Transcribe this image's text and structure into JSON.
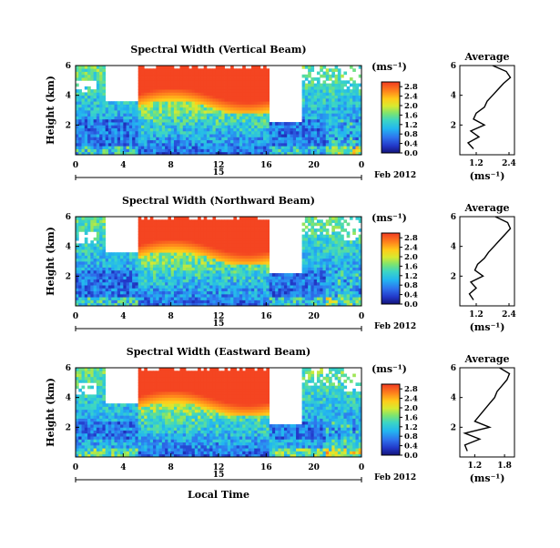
{
  "figure": {
    "xlabel": "Local Time",
    "date_label": "Feb 2012",
    "day_marker": "15",
    "units": "(ms⁻¹)",
    "avg_title": "Average"
  },
  "chart_data": [
    {
      "type": "heatmap",
      "title": "Spectral Width (Vertical Beam)",
      "xlabel": "Local Time",
      "ylabel": "Height (km)",
      "x_ticks": [
        "0",
        "4",
        "8",
        "12",
        "16",
        "20",
        "0"
      ],
      "y_ticks": [
        "2",
        "4",
        "6"
      ],
      "xlim": [
        0,
        24
      ],
      "ylim": [
        0,
        6
      ],
      "colorbar": {
        "label": "(ms⁻¹)",
        "ticks": [
          "0.0",
          "0.4",
          "0.8",
          "1.2",
          "1.6",
          "2.0",
          "2.4",
          "2.8"
        ],
        "range": [
          0,
          3.0
        ]
      },
      "data_gap_hours": [
        [
          5.3,
          16.3
        ]
      ],
      "average_profile": {
        "title": "Average",
        "xlabel": "(ms⁻¹)",
        "x_ticks": [
          "1.2",
          "2.4"
        ],
        "xlim": [
          0.6,
          2.6
        ],
        "ylim": [
          0,
          6
        ],
        "y_ticks": [
          "2",
          "4",
          "6"
        ],
        "height_km": [
          0.4,
          0.8,
          1.2,
          1.6,
          2.0,
          2.4,
          2.8,
          3.2,
          3.6,
          4.0,
          4.4,
          4.8,
          5.2,
          5.6,
          6.0
        ],
        "width": [
          1.1,
          0.9,
          1.3,
          1.0,
          1.5,
          1.1,
          1.2,
          1.5,
          1.6,
          1.8,
          2.0,
          2.2,
          2.45,
          2.3,
          1.8
        ]
      }
    },
    {
      "type": "heatmap",
      "title": "Spectral Width (Northward Beam)",
      "xlabel": "Local Time",
      "ylabel": "Height (km)",
      "x_ticks": [
        "0",
        "4",
        "8",
        "12",
        "16",
        "20",
        "0"
      ],
      "y_ticks": [
        "2",
        "4",
        "6"
      ],
      "xlim": [
        0,
        24
      ],
      "ylim": [
        0,
        6
      ],
      "colorbar": {
        "label": "(ms⁻¹)",
        "ticks": [
          "0.0",
          "0.4",
          "0.8",
          "1.2",
          "1.6",
          "2.0",
          "2.4",
          "2.8"
        ],
        "range": [
          0,
          3.0
        ]
      },
      "data_gap_hours": [
        [
          5.3,
          16.3
        ]
      ],
      "average_profile": {
        "title": "Average",
        "xlabel": "(ms⁻¹)",
        "x_ticks": [
          "1.2",
          "2.4"
        ],
        "xlim": [
          0.6,
          2.6
        ],
        "ylim": [
          0,
          6
        ],
        "y_ticks": [
          "2",
          "4",
          "6"
        ],
        "height_km": [
          0.4,
          0.8,
          1.2,
          1.6,
          2.0,
          2.4,
          2.8,
          3.2,
          3.6,
          4.0,
          4.4,
          4.8,
          5.2,
          5.6,
          6.0
        ],
        "width": [
          1.1,
          0.95,
          1.2,
          1.0,
          1.45,
          1.15,
          1.25,
          1.5,
          1.65,
          1.85,
          2.05,
          2.25,
          2.45,
          2.35,
          1.9
        ]
      }
    },
    {
      "type": "heatmap",
      "title": "Spectral Width (Eastward Beam)",
      "xlabel": "Local Time",
      "ylabel": "Height (km)",
      "x_ticks": [
        "0",
        "4",
        "8",
        "12",
        "16",
        "20",
        "0"
      ],
      "y_ticks": [
        "2",
        "4",
        "6"
      ],
      "xlim": [
        0,
        24
      ],
      "ylim": [
        0,
        6
      ],
      "colorbar": {
        "label": "(ms⁻¹)",
        "ticks": [
          "0.0",
          "0.4",
          "0.8",
          "1.2",
          "1.6",
          "2.0",
          "2.4",
          "2.8"
        ],
        "range": [
          0,
          3.0
        ]
      },
      "data_gap_hours": [
        [
          5.3,
          16.3
        ]
      ],
      "average_profile": {
        "title": "Average",
        "xlabel": "(ms⁻¹)",
        "x_ticks": [
          "1.2",
          "1.8"
        ],
        "xlim": [
          0.9,
          2.0
        ],
        "ylim": [
          0,
          6
        ],
        "y_ticks": [
          "2",
          "4",
          "6"
        ],
        "height_km": [
          0.4,
          0.8,
          1.2,
          1.6,
          2.0,
          2.4,
          2.8,
          3.2,
          3.6,
          4.0,
          4.4,
          4.8,
          5.2,
          5.6,
          6.0
        ],
        "width": [
          1.05,
          1.0,
          1.3,
          1.0,
          1.5,
          1.2,
          1.3,
          1.4,
          1.5,
          1.6,
          1.65,
          1.75,
          1.85,
          1.9,
          1.7
        ]
      }
    }
  ]
}
